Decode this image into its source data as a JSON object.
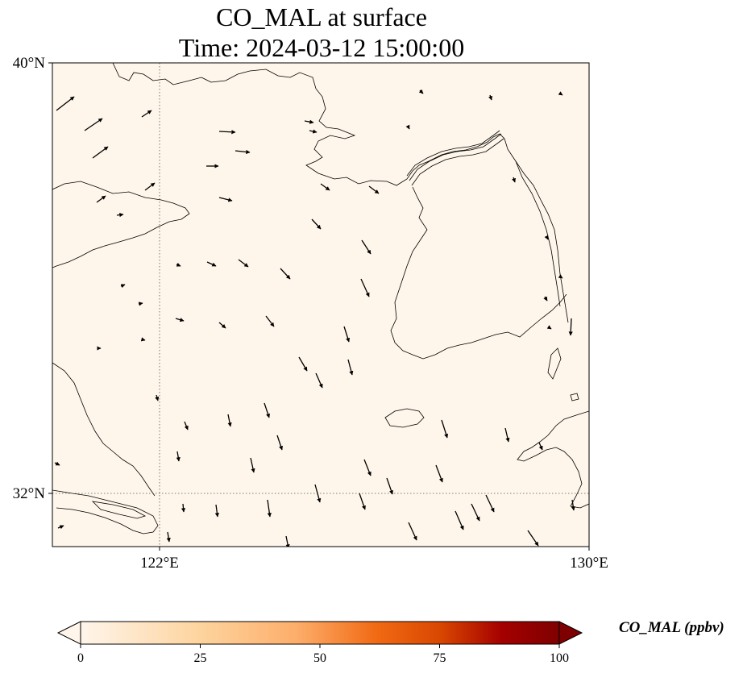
{
  "title": {
    "line1": "CO_MAL at surface",
    "line2": "Time: 2024-03-12 15:00:00"
  },
  "map": {
    "background_color": "#fef6ea",
    "lat_labels": [
      "40°N",
      "32°N"
    ],
    "lon_labels": [
      "122°E",
      "130°E"
    ],
    "lat_range": [
      31,
      40
    ],
    "lon_range": [
      120,
      130
    ],
    "gridlines": {
      "lon": [
        122
      ],
      "lat": [
        32
      ],
      "style": "dotted"
    },
    "wind_vector_color": "#000000",
    "coastline_color": "#000000"
  },
  "colorbar": {
    "label": "CO_MAL (ppbv)",
    "ticks": [
      "0",
      "25",
      "50",
      "75",
      "100"
    ],
    "range": [
      0,
      100
    ],
    "extend": "both",
    "colors": [
      "#fff5eb",
      "#fdd49e",
      "#fdae6b",
      "#f16913",
      "#d94801",
      "#a50000",
      "#7f0000"
    ]
  }
}
